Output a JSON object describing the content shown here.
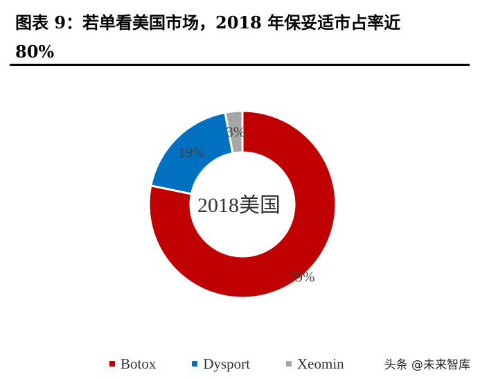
{
  "title_line1": "图表 9：若单看美国市场，2018 年保妥适市占率近",
  "title_line2": "80%",
  "watermark": "头条 @未来智库",
  "chart_data": {
    "type": "pie",
    "center_label": "2018美国",
    "categories": [
      "Botox",
      "Dysport",
      "Xeomin"
    ],
    "values": [
      79,
      19,
      3
    ],
    "data_labels": [
      "79%",
      "19%",
      "3%"
    ],
    "colors": [
      "#c00000",
      "#0070c0",
      "#a6a6a6"
    ],
    "legend_position": "bottom"
  }
}
